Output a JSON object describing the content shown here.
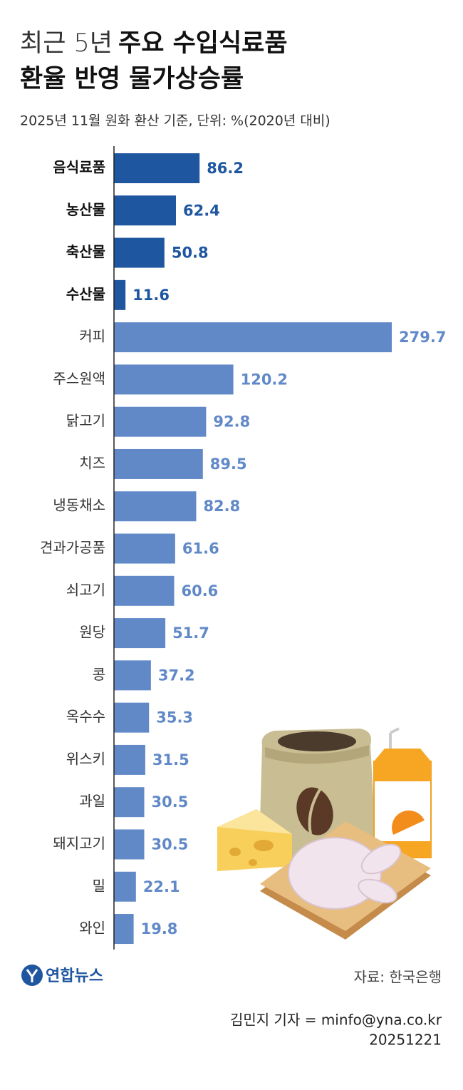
{
  "chart_data": {
    "type": "bar",
    "title": [
      "최근 5년",
      "주요 수입식료품",
      "환율 반영 물가상승률"
    ],
    "subtitle": "2025년 11월 원화 환산 기준, 단위: %(2020년 대비)",
    "categories": [
      "음식료품",
      "농산물",
      "축산물",
      "수산물",
      "커피",
      "주스원액",
      "닭고기",
      "치즈",
      "냉동채소",
      "견과가공품",
      "쇠고기",
      "원당",
      "콩",
      "옥수수",
      "위스키",
      "과일",
      "돼지고기",
      "밀",
      "와인"
    ],
    "values": [
      86.2,
      62.4,
      50.8,
      11.6,
      279.7,
      120.2,
      92.8,
      89.5,
      82.8,
      61.6,
      60.6,
      51.7,
      37.2,
      35.3,
      31.5,
      30.5,
      30.5,
      22.1,
      19.8
    ],
    "colors": [
      "#1f56a0",
      "#1f56a0",
      "#1f56a0",
      "#1f56a0",
      "#6189c8",
      "#6189c8",
      "#6189c8",
      "#6189c8",
      "#6189c8",
      "#6189c8",
      "#6189c8",
      "#6189c8",
      "#6189c8",
      "#6189c8",
      "#6189c8",
      "#6189c8",
      "#6189c8",
      "#6189c8",
      "#6189c8"
    ],
    "emphasis": [
      true,
      true,
      true,
      true,
      false,
      false,
      false,
      false,
      false,
      false,
      false,
      false,
      false,
      false,
      false,
      false,
      false,
      false,
      false
    ]
  },
  "logo": "연합뉴스",
  "source": "자료: 한국은행",
  "credit": "김민지 기자 = minfo@yna.co.kr",
  "date": "20251221"
}
